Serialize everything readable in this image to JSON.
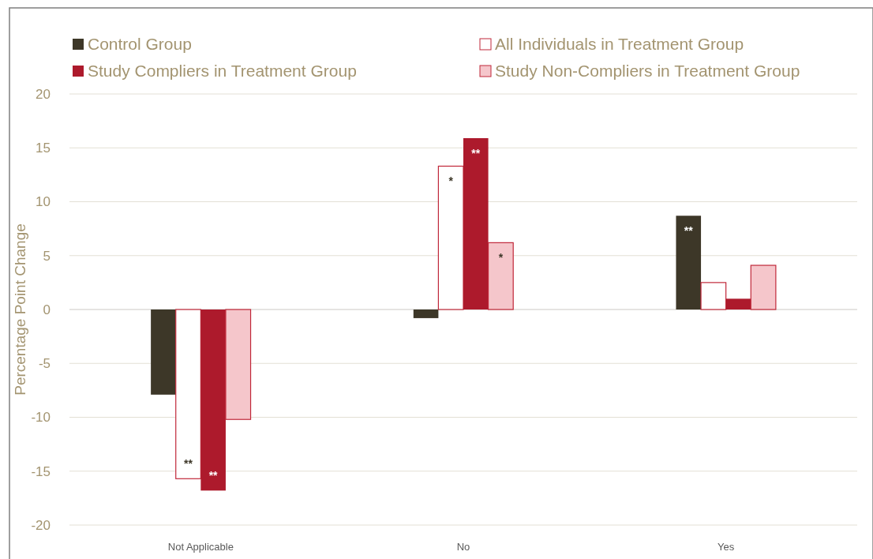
{
  "chart_data": {
    "type": "bar",
    "ylabel": "Percentage Point Change",
    "categories": [
      "Not Applicable",
      "No",
      "Yes"
    ],
    "series": [
      {
        "name": "Control Group",
        "color": "#3d3728",
        "values": [
          -7.9,
          -0.8,
          8.7
        ],
        "value_labels": [
          null,
          null,
          "**"
        ]
      },
      {
        "name": "All Individuals in Treatment Group",
        "color": "#ffffff",
        "values": [
          -15.7,
          13.3,
          2.5
        ],
        "value_labels": [
          "**",
          "*",
          null
        ]
      },
      {
        "name": "Study Compliers in Treatment Group",
        "color": "#ad1a2c",
        "values": [
          -16.8,
          15.9,
          1.0
        ],
        "value_labels": [
          "**",
          "**",
          null
        ]
      },
      {
        "name": "Study Non-Compliers in Treatment Group",
        "color": "#f5c6cb",
        "values": [
          -10.2,
          6.2,
          4.1
        ],
        "value_labels": [
          null,
          "*",
          null
        ]
      }
    ],
    "ylim": [
      -20,
      20
    ],
    "yticks": [
      -20,
      -15,
      -10,
      -5,
      0,
      5,
      10,
      15,
      20
    ],
    "grid": "y",
    "legend": "top"
  }
}
